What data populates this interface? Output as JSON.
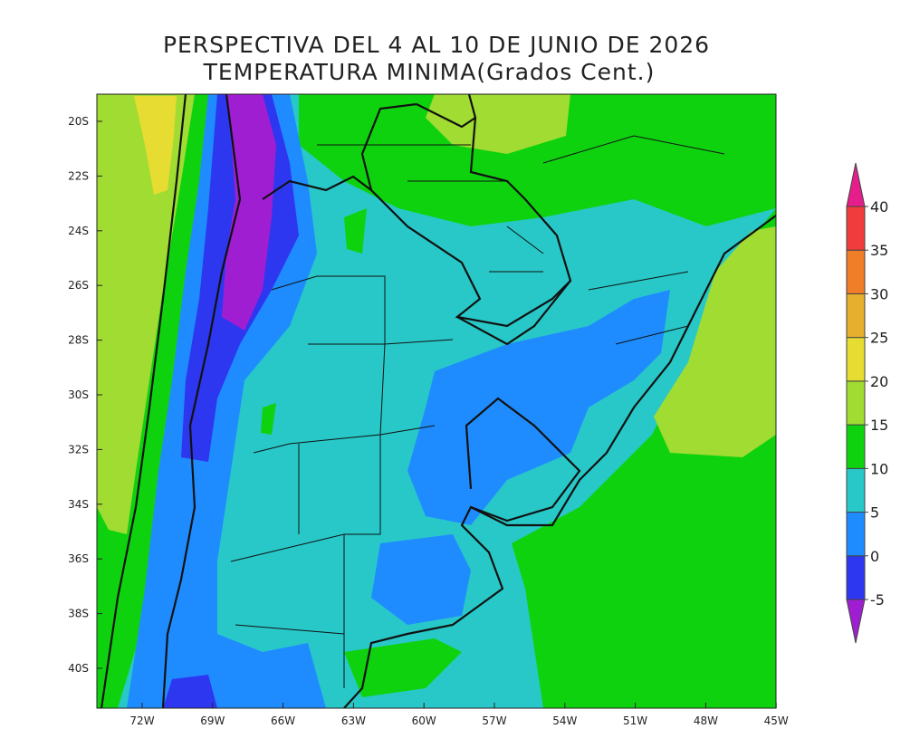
{
  "title": "PERSPECTIVA DEL 4 AL 10 DE JUNIO DE 2026",
  "subtitle": "TEMPERATURA MINIMA(Grados Cent.)",
  "map": {
    "lat_ticks": [
      "20S",
      "22S",
      "24S",
      "26S",
      "28S",
      "30S",
      "32S",
      "34S",
      "36S",
      "38S",
      "40S"
    ],
    "lon_ticks": [
      "72W",
      "69W",
      "66W",
      "63W",
      "60W",
      "57W",
      "54W",
      "51W",
      "48W",
      "45W"
    ]
  },
  "legend": {
    "levels": [
      -5,
      0,
      5,
      10,
      15,
      20,
      25,
      30,
      35,
      40
    ],
    "colors": [
      "#a01ed2",
      "#2d37f0",
      "#1e8cff",
      "#28c8c8",
      "#0fd20f",
      "#a0dc32",
      "#e6dc32",
      "#e6af2d",
      "#f07d28",
      "#f03c3c",
      "#e61e8c"
    ]
  }
}
